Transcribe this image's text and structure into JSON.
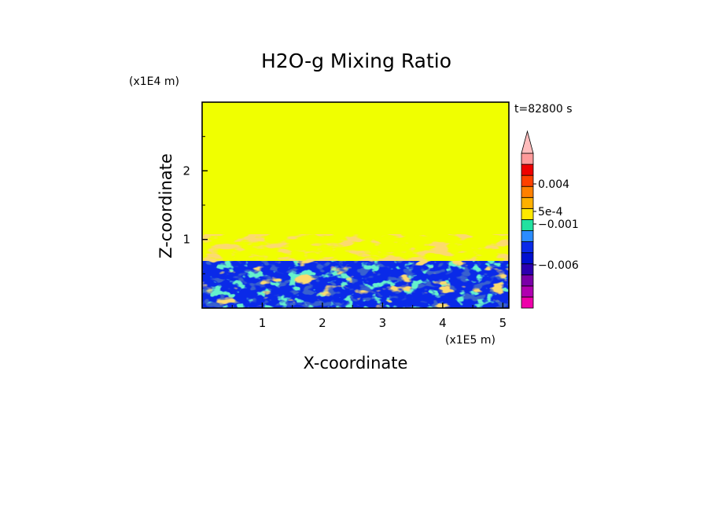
{
  "chart_data": {
    "type": "heatmap",
    "title": "H2O-g Mixing Ratio",
    "xlabel": "X-coordinate",
    "ylabel": "Z-coordinate",
    "x_unit": "(x1E5 m)",
    "y_unit": "(x1E4 m)",
    "time_label": "t=82800 s",
    "xlim": [
      0,
      5.1
    ],
    "ylim": [
      0,
      3
    ],
    "x_ticks": [
      "1",
      "2",
      "3",
      "4",
      "5"
    ],
    "y_ticks": [
      "1",
      "2"
    ],
    "background_value_color": "#f0ff00",
    "regions": [
      {
        "description": "upper layer",
        "z_range": [
          1.05,
          3.0
        ],
        "color": "#f0ff00"
      },
      {
        "description": "orange convective plumes",
        "z_range": [
          0.65,
          1.05
        ],
        "color": "#f8b32a"
      },
      {
        "description": "mixed layer (blue / green / orange)",
        "z_range": [
          0.0,
          0.68
        ],
        "color": "#0a1fe6"
      }
    ],
    "colorbar": {
      "labels": [
        "0.004",
        "5e-4",
        "−0.001",
        "−0.006"
      ],
      "colors_bottom_to_top": [
        "#ee00aa",
        "#b000b0",
        "#7a00a8",
        "#2c00b0",
        "#0010d0",
        "#0a2ae8",
        "#2b8cff",
        "#21e1a0",
        "#ffe800",
        "#ffb000",
        "#ff8000",
        "#ff4000",
        "#ee0000",
        "#ff9a9a",
        "#ffbcbc"
      ]
    }
  }
}
